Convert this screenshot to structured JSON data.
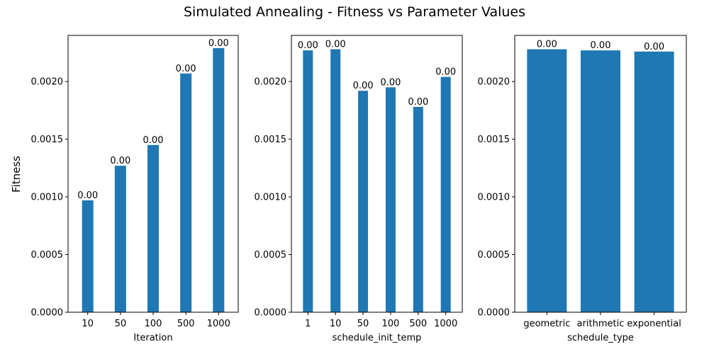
{
  "figure": {
    "title": "Simulated Annealing - Fitness vs Parameter Values",
    "ylabel": "Fitness"
  },
  "colors": {
    "bar": "#1f77b4"
  },
  "chart_data": [
    {
      "type": "bar",
      "xlabel": "Iteration",
      "ylabel": "Fitness",
      "categories": [
        "10",
        "50",
        "100",
        "500",
        "1000"
      ],
      "values": [
        0.00097,
        0.00127,
        0.00145,
        0.00207,
        0.00229
      ],
      "data_labels": [
        "0.00",
        "0.00",
        "0.00",
        "0.00",
        "0.00"
      ],
      "ylim": [
        0,
        0.0024
      ],
      "yticks": [
        "0.0000",
        "0.0005",
        "0.0010",
        "0.0015",
        "0.0020"
      ]
    },
    {
      "type": "bar",
      "xlabel": "schedule_init_temp",
      "categories": [
        "1",
        "10",
        "50",
        "100",
        "500",
        "1000"
      ],
      "values": [
        0.00227,
        0.00228,
        0.00192,
        0.00195,
        0.00178,
        0.00204
      ],
      "data_labels": [
        "0.00",
        "0.00",
        "0.00",
        "0.00",
        "0.00",
        "0.00"
      ],
      "ylim": [
        0,
        0.0024
      ],
      "yticks": [
        "0.0000",
        "0.0005",
        "0.0010",
        "0.0015",
        "0.0020"
      ]
    },
    {
      "type": "bar",
      "xlabel": "schedule_type",
      "categories": [
        "geometric",
        "arithmetic",
        "exponential"
      ],
      "values": [
        0.00228,
        0.00227,
        0.00226
      ],
      "data_labels": [
        "0.00",
        "0.00",
        "0.00"
      ],
      "ylim": [
        0,
        0.0024
      ],
      "yticks": [
        "0.0000",
        "0.0005",
        "0.0010",
        "0.0015",
        "0.0020"
      ]
    }
  ]
}
